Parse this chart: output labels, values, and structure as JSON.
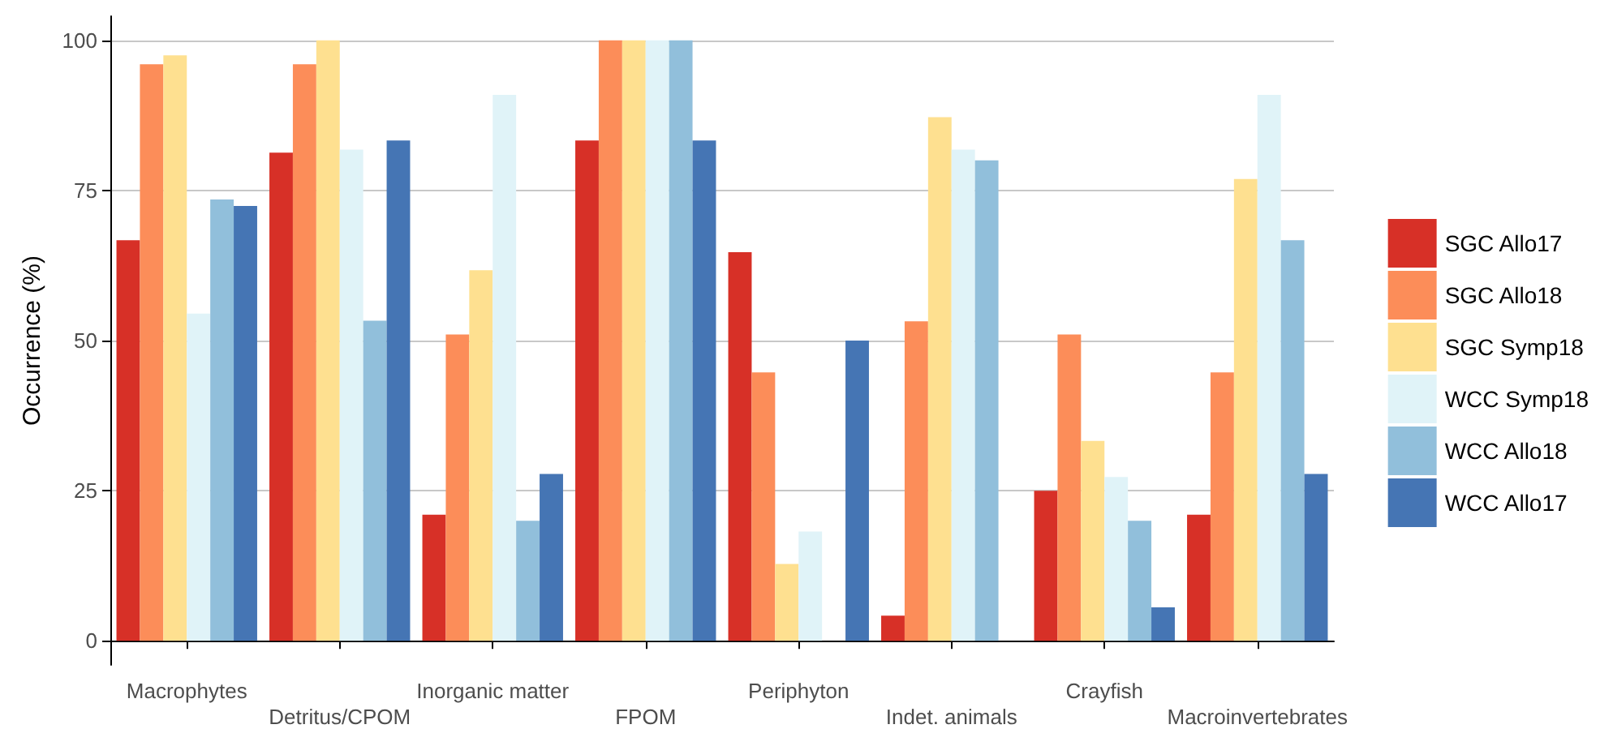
{
  "chart_data": {
    "type": "bar",
    "ylabel": "Occurrence (%)",
    "categories": [
      "Macrophytes",
      "Detritus/CPOM",
      "Inorganic matter",
      "FPOM",
      "Periphyton",
      "Indet. animals",
      "Crayfish",
      "Macroinvertebrates"
    ],
    "series": [
      {
        "name": "SGC Allo17",
        "color": "#d73027",
        "values": [
          66.7,
          81.3,
          21,
          83.3,
          64.7,
          4.2,
          25,
          21
        ]
      },
      {
        "name": "SGC Allo18",
        "color": "#fc8d59",
        "values": [
          96,
          96,
          51,
          100,
          44.7,
          53.2,
          51,
          44.7
        ]
      },
      {
        "name": "SGC Symp18",
        "color": "#fee090",
        "values": [
          97.5,
          100,
          61.7,
          100,
          12.8,
          87.2,
          33.3,
          76.9
        ]
      },
      {
        "name": "WCC Symp18",
        "color": "#e0f3f8",
        "values": [
          54.5,
          81.8,
          90.9,
          100,
          18.2,
          81.8,
          27.3,
          90.9
        ]
      },
      {
        "name": "WCC Allo18",
        "color": "#91bfdb",
        "values": [
          73.5,
          53.3,
          20,
          100,
          0,
          80,
          20,
          66.7
        ]
      },
      {
        "name": "WCC Allo17",
        "color": "#4575b4",
        "values": [
          72.4,
          83.3,
          27.8,
          83.3,
          50,
          0,
          5.6,
          27.8
        ]
      }
    ],
    "ylim": [
      -4,
      104
    ],
    "yticks": [
      0,
      25,
      50,
      75,
      100
    ],
    "grid": "y",
    "legend": "right"
  }
}
